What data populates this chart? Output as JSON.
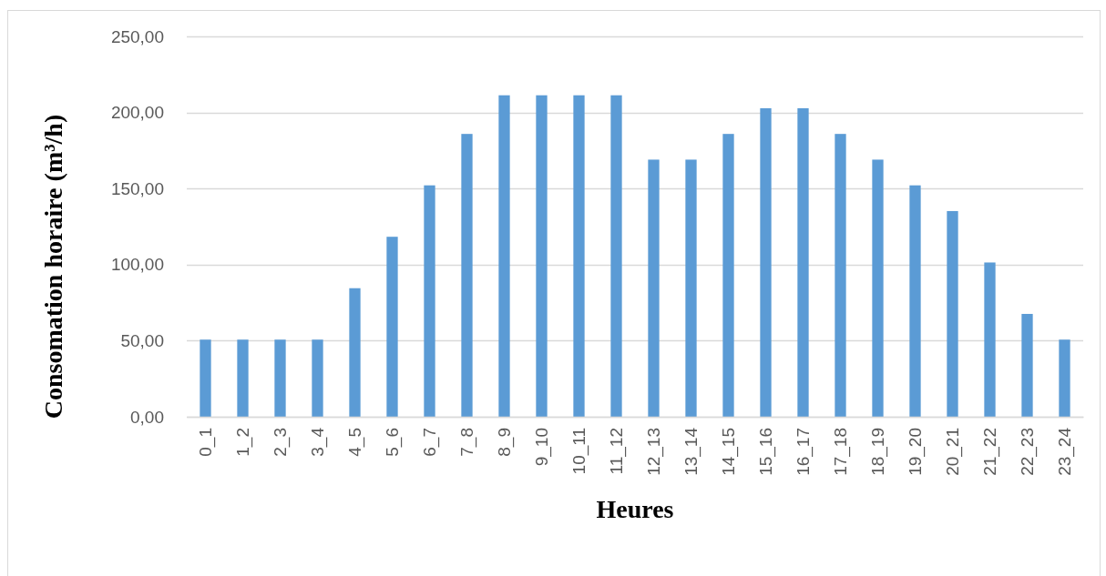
{
  "chart_data": {
    "type": "bar",
    "xlabel": "Heures",
    "ylabel": "Consomation horaire (m³/h)",
    "categories": [
      "0_1",
      "1_2",
      "2_3",
      "3_4",
      "4_5",
      "5_6",
      "6_7",
      "7_8",
      "8_9",
      "9_10",
      "10_11",
      "11_12",
      "12_13",
      "13_14",
      "14_15",
      "15_16",
      "16_17",
      "17_18",
      "18_19",
      "19_20",
      "20_21",
      "21_22",
      "22_23",
      "23_24"
    ],
    "values": [
      50.7,
      50.7,
      50.7,
      50.7,
      84.5,
      118.3,
      152.1,
      185.9,
      211.3,
      211.3,
      211.3,
      211.3,
      169,
      169,
      185.9,
      202.8,
      202.8,
      185.9,
      169,
      152.1,
      135.2,
      101.4,
      67.6,
      50.7
    ],
    "color": "#5b9bd5",
    "ylim": [
      0,
      250
    ],
    "yticks": [
      {
        "value": 0,
        "label": "0,00"
      },
      {
        "value": 50,
        "label": "50,00"
      },
      {
        "value": 100,
        "label": "100,00"
      },
      {
        "value": 150,
        "label": "150,00"
      },
      {
        "value": 200,
        "label": "200,00"
      },
      {
        "value": 250,
        "label": "250,00"
      }
    ],
    "grid": "y"
  }
}
